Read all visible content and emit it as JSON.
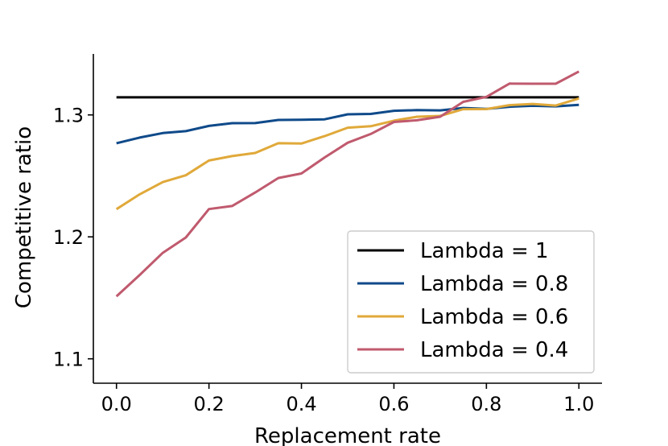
{
  "chart_data": {
    "type": "line",
    "title": "",
    "xlabel": "Replacement rate",
    "ylabel": "Competitive ratio",
    "xlim": [
      -0.05,
      1.05
    ],
    "ylim": [
      1.08,
      1.35
    ],
    "xticks": [
      0.0,
      0.2,
      0.4,
      0.6,
      0.8,
      1.0
    ],
    "xtick_labels": [
      "0.0",
      "0.2",
      "0.4",
      "0.6",
      "0.8",
      "1.0"
    ],
    "yticks": [
      1.1,
      1.2,
      1.3
    ],
    "ytick_labels": [
      "1.1",
      "1.2",
      "1.3"
    ],
    "grid": false,
    "legend_position": "lower-right",
    "x": [
      0.0,
      0.05,
      0.1,
      0.15,
      0.2,
      0.25,
      0.3,
      0.35,
      0.4,
      0.45,
      0.5,
      0.55,
      0.6,
      0.65,
      0.7,
      0.75,
      0.8,
      0.85,
      0.9,
      0.95,
      1.0
    ],
    "series": [
      {
        "name": "Lambda = 1",
        "color": "#000000",
        "values": [
          1.3144,
          1.3144,
          1.3144,
          1.3144,
          1.3144,
          1.3144,
          1.3144,
          1.3144,
          1.3144,
          1.3144,
          1.3144,
          1.3144,
          1.3144,
          1.3144,
          1.3144,
          1.3144,
          1.3144,
          1.3144,
          1.3144,
          1.3144,
          1.3144
        ]
      },
      {
        "name": "Lambda = 0.8",
        "color": "#0f4a8a",
        "values": [
          1.2768,
          1.2814,
          1.2851,
          1.2867,
          1.291,
          1.2932,
          1.2933,
          1.2959,
          1.296,
          1.2964,
          1.3005,
          1.3008,
          1.3034,
          1.3039,
          1.3037,
          1.3057,
          1.305,
          1.3067,
          1.3075,
          1.307,
          1.3083
        ]
      },
      {
        "name": "Lambda = 0.6",
        "color": "#e0a93a",
        "values": [
          1.2227,
          1.2349,
          1.2449,
          1.2505,
          1.2626,
          1.2662,
          1.2688,
          1.2768,
          1.2765,
          1.2826,
          1.2895,
          1.2907,
          1.2953,
          1.2985,
          1.2992,
          1.3047,
          1.3048,
          1.308,
          1.309,
          1.3077,
          1.3135
        ]
      },
      {
        "name": "Lambda = 0.4",
        "color": "#c05a6e",
        "values": [
          1.1512,
          1.1687,
          1.1869,
          1.1995,
          1.2228,
          1.2253,
          1.2364,
          1.2483,
          1.252,
          1.2651,
          1.2772,
          1.2844,
          1.2942,
          1.2956,
          1.2985,
          1.3107,
          1.3148,
          1.3257,
          1.3256,
          1.3256,
          1.3356
        ]
      }
    ]
  }
}
